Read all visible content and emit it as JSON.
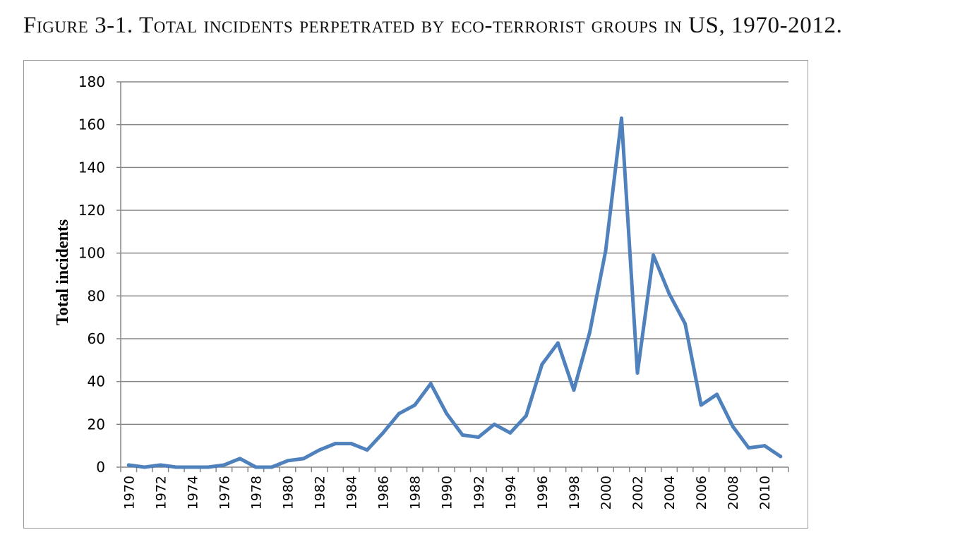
{
  "figure": {
    "caption": "Figure 3-1. Total incidents perpetrated by eco-terrorist groups in US, 1970-2012."
  },
  "colors": {
    "series_line": "#4f81bd",
    "gridline": "#868686",
    "axis": "#868686",
    "frame": "#9a9a9a"
  },
  "chart_data": {
    "type": "line",
    "title": "",
    "xlabel": "",
    "ylabel": "Total incidents",
    "ylim": [
      0,
      180
    ],
    "y_ticks": [
      0,
      20,
      40,
      60,
      80,
      100,
      120,
      140,
      160,
      180
    ],
    "grid": true,
    "legend": "none",
    "categories": [
      "1970",
      "1971",
      "1972",
      "1973",
      "1974",
      "1975",
      "1976",
      "1977",
      "1978",
      "1979",
      "1980",
      "1981",
      "1982",
      "1983",
      "1984",
      "1985",
      "1986",
      "1987",
      "1988",
      "1989",
      "1990",
      "1991",
      "1992",
      "1993",
      "1994",
      "1995",
      "1996",
      "1997",
      "1998",
      "1999",
      "2000",
      "2001",
      "2002",
      "2003",
      "2004",
      "2005",
      "2006",
      "2007",
      "2008",
      "2009",
      "2010",
      "2011"
    ],
    "x_tick_labels": [
      "1970",
      "",
      "1972",
      "",
      "1974",
      "",
      "1976",
      "",
      "1978",
      "",
      "1980",
      "",
      "1982",
      "",
      "1984",
      "",
      "1986",
      "",
      "1988",
      "",
      "1990",
      "",
      "1992",
      "",
      "1994",
      "",
      "1996",
      "",
      "1998",
      "",
      "2000",
      "",
      "2002",
      "",
      "2004",
      "",
      "2006",
      "",
      "2008",
      "",
      "2010",
      ""
    ],
    "series": [
      {
        "name": "Total incidents",
        "values": [
          1,
          0,
          1,
          0,
          0,
          0,
          1,
          4,
          0,
          0,
          3,
          4,
          8,
          11,
          11,
          8,
          16,
          25,
          29,
          39,
          25,
          15,
          14,
          20,
          16,
          24,
          48,
          58,
          36,
          63,
          101,
          163,
          44,
          99,
          81,
          67,
          29,
          34,
          19,
          9,
          10,
          5
        ]
      }
    ]
  }
}
